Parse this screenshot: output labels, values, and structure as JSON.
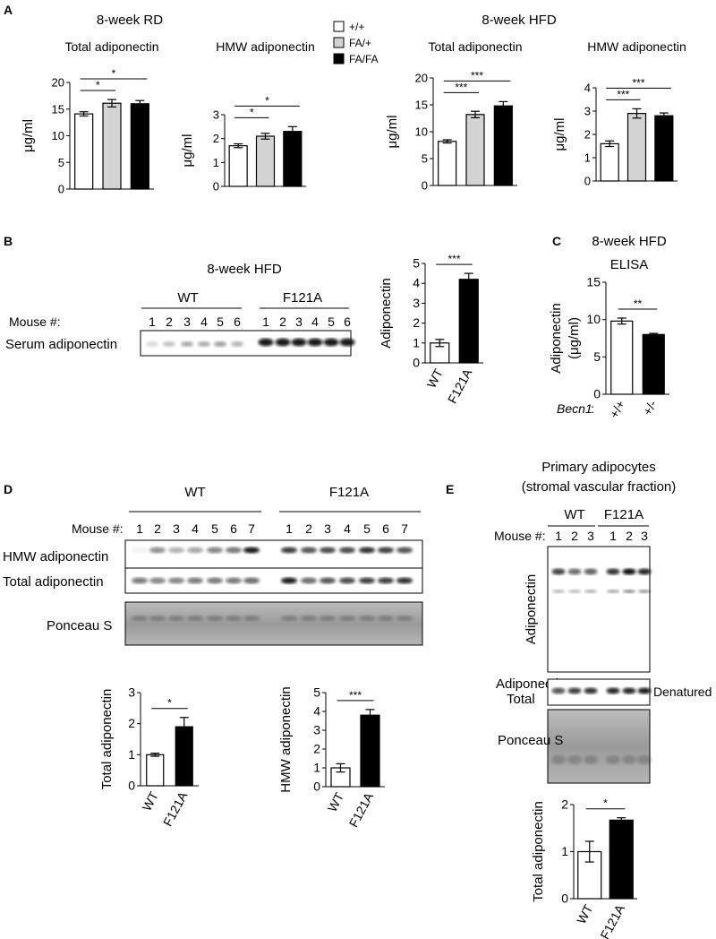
{
  "panels": {
    "A": {
      "letter": "A",
      "legend": [
        {
          "label": "+/+",
          "color": "#ffffff"
        },
        {
          "label": "FA/+",
          "color": "#d3d3d3"
        },
        {
          "label": "FA/FA",
          "color": "#000000"
        }
      ],
      "rd_title": "8-week RD",
      "hfd_title": "8-week HFD"
    },
    "B": {
      "letter": "B",
      "title": "8-week HFD",
      "wt": "WT",
      "f121a": "F121A",
      "mouse_label": "Mouse #:",
      "row_label": "Serum adiponectin",
      "lanes_wt": [
        "1",
        "2",
        "3",
        "4",
        "5",
        "6"
      ],
      "lanes_f": [
        "1",
        "2",
        "3",
        "4",
        "5",
        "6"
      ]
    },
    "C": {
      "letter": "C",
      "title1": "8-week HFD",
      "title2": "ELISA",
      "gene": "Becn1",
      "gene_suffix": ":"
    },
    "D": {
      "letter": "D",
      "wt": "WT",
      "f121a": "F121A",
      "mouse_label": "Mouse #:",
      "lanes_wt": [
        "1",
        "2",
        "3",
        "4",
        "5",
        "6",
        "7"
      ],
      "lanes_f": [
        "1",
        "2",
        "3",
        "4",
        "5",
        "6",
        "7"
      ],
      "rows": [
        "HMW adiponectin",
        "Total adiponectin",
        "Ponceau S"
      ]
    },
    "E": {
      "letter": "E",
      "title1": "Primary adipocytes",
      "title2": "(stromal vascular fraction)",
      "wt": "WT",
      "f121a": "F121A",
      "mouse_label": "Mouse #:",
      "lanes_wt": [
        "1",
        "2",
        "3"
      ],
      "lanes_f": [
        "1",
        "2",
        "3"
      ],
      "blot_label": "Adiponectin",
      "total_label1": "Adiponectin",
      "total_label2": "Total",
      "denatured": "Denatured",
      "ponceau": "Ponceau S"
    }
  },
  "chart_data": [
    {
      "id": "A1",
      "type": "bar",
      "title": "Total adiponectin",
      "ylabel": "μg/ml",
      "ylim": [
        0,
        20
      ],
      "yticks": [
        0,
        5,
        10,
        15,
        20
      ],
      "categories": [
        "+/+",
        "FA/+",
        "FA/FA"
      ],
      "values": [
        14.1,
        16.1,
        16.0
      ],
      "errors": [
        0.4,
        0.7,
        0.6
      ],
      "colors": [
        "#ffffff",
        "#d3d3d3",
        "#000000"
      ],
      "significance": [
        {
          "from": 0,
          "to": 1,
          "label": "*"
        },
        {
          "from": 0,
          "to": 2,
          "label": "*"
        }
      ]
    },
    {
      "id": "A2",
      "type": "bar",
      "title": "HMW adiponectin",
      "ylabel": "μg/ml",
      "ylim": [
        0,
        3
      ],
      "yticks": [
        0,
        1,
        2,
        3
      ],
      "categories": [
        "+/+",
        "FA/+",
        "FA/FA"
      ],
      "values": [
        1.7,
        2.1,
        2.3
      ],
      "errors": [
        0.08,
        0.12,
        0.2
      ],
      "colors": [
        "#ffffff",
        "#d3d3d3",
        "#000000"
      ],
      "significance": [
        {
          "from": 0,
          "to": 1,
          "label": "*"
        },
        {
          "from": 0,
          "to": 2,
          "label": "*"
        }
      ]
    },
    {
      "id": "A3",
      "type": "bar",
      "title": "Total adiponectin",
      "ylabel": "μg/ml",
      "ylim": [
        0,
        20
      ],
      "yticks": [
        0,
        5,
        10,
        15,
        20
      ],
      "categories": [
        "+/+",
        "FA/+",
        "FA/FA"
      ],
      "values": [
        8.2,
        13.2,
        14.8
      ],
      "errors": [
        0.3,
        0.6,
        0.8
      ],
      "colors": [
        "#ffffff",
        "#d3d3d3",
        "#000000"
      ],
      "significance": [
        {
          "from": 0,
          "to": 1,
          "label": "***"
        },
        {
          "from": 0,
          "to": 2,
          "label": "***"
        }
      ]
    },
    {
      "id": "A4",
      "type": "bar",
      "title": "HMW adiponectin",
      "ylabel": "μg/ml",
      "ylim": [
        0,
        4
      ],
      "yticks": [
        0,
        1,
        2,
        3,
        4
      ],
      "categories": [
        "+/+",
        "FA/+",
        "FA/FA"
      ],
      "values": [
        1.6,
        2.9,
        2.8
      ],
      "errors": [
        0.12,
        0.2,
        0.12
      ],
      "colors": [
        "#ffffff",
        "#d3d3d3",
        "#000000"
      ],
      "significance": [
        {
          "from": 0,
          "to": 1,
          "label": "***"
        },
        {
          "from": 0,
          "to": 2,
          "label": "***"
        }
      ]
    },
    {
      "id": "B1",
      "type": "bar",
      "title": "",
      "ylabel": "Adiponectin",
      "ylim": [
        0,
        5
      ],
      "yticks": [
        0,
        1,
        2,
        3,
        4,
        5
      ],
      "categories": [
        "WT",
        "F121A"
      ],
      "values": [
        1.0,
        4.2
      ],
      "errors": [
        0.18,
        0.3
      ],
      "colors": [
        "#ffffff",
        "#000000"
      ],
      "rotate_labels": true,
      "significance": [
        {
          "from": 0,
          "to": 1,
          "label": "***"
        }
      ]
    },
    {
      "id": "C1",
      "type": "bar",
      "title": "",
      "ylabel": "Adiponectin",
      "ylabel2": "(μg/ml)",
      "ylim": [
        0,
        15
      ],
      "yticks": [
        0,
        5,
        10,
        15
      ],
      "categories": [
        "+/+",
        "+/-"
      ],
      "values": [
        9.8,
        8.0
      ],
      "errors": [
        0.4,
        0.15
      ],
      "colors": [
        "#ffffff",
        "#000000"
      ],
      "rotate_labels": true,
      "significance": [
        {
          "from": 0,
          "to": 1,
          "label": "**"
        }
      ]
    },
    {
      "id": "D1",
      "type": "bar",
      "title": "",
      "ylabel": "Total adiponectin",
      "ylim": [
        0,
        3
      ],
      "yticks": [
        0,
        1,
        2,
        3
      ],
      "categories": [
        "WT",
        "F121A"
      ],
      "values": [
        1.0,
        1.9
      ],
      "errors": [
        0.05,
        0.3
      ],
      "colors": [
        "#ffffff",
        "#000000"
      ],
      "rotate_labels": true,
      "significance": [
        {
          "from": 0,
          "to": 1,
          "label": "*"
        }
      ]
    },
    {
      "id": "D2",
      "type": "bar",
      "title": "",
      "ylabel": "HMW adiponectin",
      "ylim": [
        0,
        5
      ],
      "yticks": [
        0,
        1,
        2,
        3,
        4,
        5
      ],
      "categories": [
        "WT",
        "F121A"
      ],
      "values": [
        1.0,
        3.8
      ],
      "errors": [
        0.22,
        0.3
      ],
      "colors": [
        "#ffffff",
        "#000000"
      ],
      "rotate_labels": true,
      "significance": [
        {
          "from": 0,
          "to": 1,
          "label": "***"
        }
      ]
    },
    {
      "id": "E1",
      "type": "bar",
      "title": "",
      "ylabel": "Total adiponectin",
      "ylim": [
        0,
        2
      ],
      "yticks": [
        0,
        1,
        2
      ],
      "categories": [
        "WT",
        "F121A"
      ],
      "values": [
        1.0,
        1.67
      ],
      "errors": [
        0.22,
        0.05
      ],
      "colors": [
        "#ffffff",
        "#000000"
      ],
      "rotate_labels": true,
      "significance": [
        {
          "from": 0,
          "to": 1,
          "label": "*"
        }
      ]
    }
  ]
}
